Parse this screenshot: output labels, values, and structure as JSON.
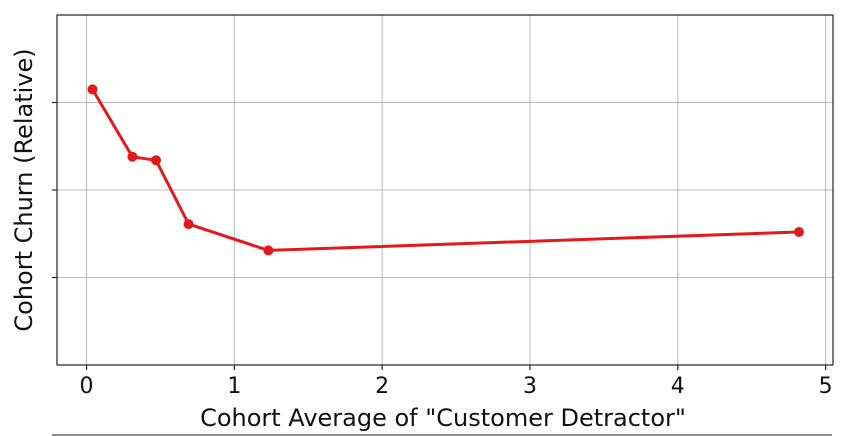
{
  "chart_data": {
    "type": "line",
    "xlabel": "Cohort Average of  \"Customer Detractor\"",
    "ylabel": "Cohort Churn (Relative)",
    "xlim": [
      -0.2,
      5.05
    ],
    "ylim": [
      0,
      4
    ],
    "x_ticks": [
      0,
      1,
      2,
      3,
      4,
      5
    ],
    "x_tick_labels": [
      "0",
      "1",
      "2",
      "3",
      "4",
      "5"
    ],
    "y_ticks": [
      1,
      2,
      3
    ],
    "grid": true,
    "series": [
      {
        "color": "#e31a1c",
        "x": [
          0.04,
          0.31,
          0.47,
          0.69,
          1.23,
          4.82
        ],
        "y": [
          3.15,
          2.38,
          2.34,
          1.61,
          1.31,
          1.52
        ]
      }
    ]
  }
}
